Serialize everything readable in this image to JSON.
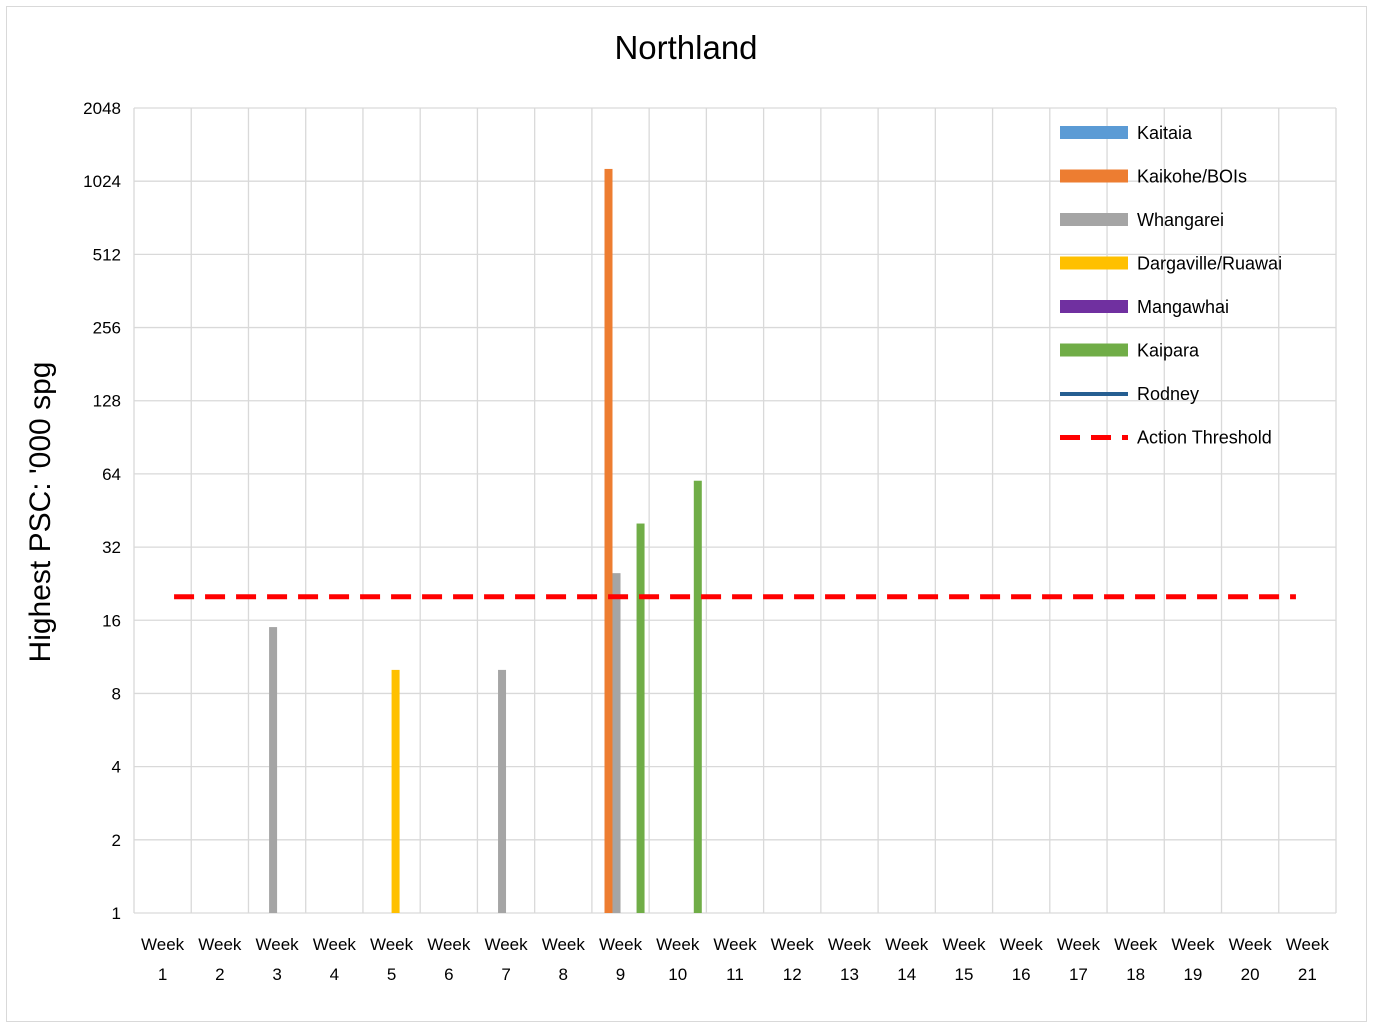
{
  "chart_data": {
    "type": "bar",
    "title": "Northland",
    "xlabel": "",
    "ylabel": "Highest PSC: '000 spg",
    "y_scale": "log2",
    "ylim": [
      1,
      2048
    ],
    "y_ticks": [
      "1",
      "2",
      "4",
      "8",
      "16",
      "32",
      "64",
      "128",
      "256",
      "512",
      "1024",
      "2048"
    ],
    "categories": [
      "Week 1",
      "Week 2",
      "Week 3",
      "Week 4",
      "Week 5",
      "Week 6",
      "Week 7",
      "Week 8",
      "Week 9",
      "Week 10",
      "Week 11",
      "Week 12",
      "Week 13",
      "Week 14",
      "Week 15",
      "Week 16",
      "Week 17",
      "Week 18",
      "Week 19",
      "Week 20",
      "Week 21"
    ],
    "grid": "on",
    "legend_position": "top-right",
    "series": [
      {
        "name": "Kaitaia",
        "color": "#5b9bd5",
        "values": [
          null,
          null,
          null,
          null,
          null,
          null,
          null,
          null,
          null,
          null,
          null,
          null,
          null,
          null,
          null,
          null,
          null,
          null,
          null,
          null,
          null
        ]
      },
      {
        "name": "Kaikohe/BOIs",
        "color": "#ed7d31",
        "values": [
          null,
          null,
          null,
          null,
          null,
          null,
          null,
          null,
          1150,
          null,
          null,
          null,
          null,
          null,
          null,
          null,
          null,
          null,
          null,
          null,
          null
        ]
      },
      {
        "name": "Whangarei",
        "color": "#a5a5a5",
        "values": [
          null,
          null,
          15,
          null,
          null,
          null,
          10,
          null,
          25,
          null,
          null,
          null,
          null,
          null,
          null,
          null,
          null,
          null,
          null,
          null,
          null
        ]
      },
      {
        "name": "Dargaville/Ruawai",
        "color": "#ffc000",
        "values": [
          null,
          null,
          null,
          null,
          10,
          null,
          null,
          null,
          null,
          null,
          null,
          null,
          null,
          null,
          null,
          null,
          null,
          null,
          null,
          null,
          null
        ]
      },
      {
        "name": "Mangawhai",
        "color": "#7030a0",
        "values": [
          null,
          null,
          null,
          null,
          null,
          null,
          null,
          null,
          null,
          null,
          null,
          null,
          null,
          null,
          null,
          null,
          null,
          null,
          null,
          null,
          null
        ]
      },
      {
        "name": "Kaipara",
        "color": "#70ad47",
        "values": [
          null,
          null,
          null,
          null,
          null,
          null,
          null,
          null,
          40,
          60,
          null,
          null,
          null,
          null,
          null,
          null,
          null,
          null,
          null,
          null,
          null
        ]
      }
    ],
    "line_series": [
      {
        "name": "Rodney",
        "color": "#255e91",
        "style": "solid"
      },
      {
        "name": "Action Threshold",
        "color": "#ff0000",
        "style": "dashed",
        "value": 20
      }
    ]
  }
}
